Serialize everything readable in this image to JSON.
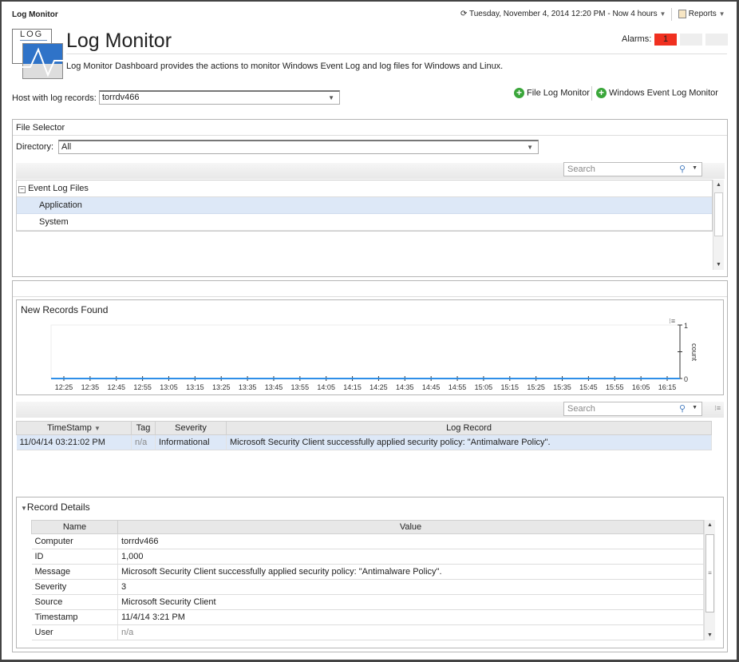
{
  "header": {
    "title": "Log Monitor",
    "time_range": "Tuesday, November 4, 2014 12:20 PM - Now 4 hours",
    "reports": "Reports"
  },
  "page": {
    "title": "Log Monitor",
    "description": "Log Monitor Dashboard provides the actions to monitor Windows Event Log and log files for Windows and Linux.",
    "logo_text": "LOG",
    "alarms_label": "Alarms:",
    "alarms_count": "1",
    "alarm_color": "#f03020"
  },
  "host": {
    "label": "Host with log records:",
    "value": "torrdv466"
  },
  "actions": {
    "file_log_monitor": "File Log Monitor",
    "windows_event_log_monitor": "Windows Event Log Monitor"
  },
  "file_selector": {
    "title": "File Selector",
    "directory_label": "Directory:",
    "directory_value": "All",
    "search_placeholder": "Search",
    "tree": {
      "root": "Event Log Files",
      "items": [
        "Application",
        "System"
      ]
    }
  },
  "chart_data": {
    "type": "line",
    "title": "New Records Found",
    "ylabel": "count",
    "ylim": [
      0,
      1
    ],
    "yticks": [
      "0",
      "1"
    ],
    "categories": [
      "12:25",
      "12:35",
      "12:45",
      "12:55",
      "13:05",
      "13:15",
      "13:25",
      "13:35",
      "13:45",
      "13:55",
      "14:05",
      "14:15",
      "14:25",
      "14:35",
      "14:45",
      "14:55",
      "15:05",
      "15:15",
      "15:25",
      "15:35",
      "15:45",
      "15:55",
      "16:05",
      "16:15"
    ],
    "values": [
      0,
      0,
      0,
      0,
      0,
      0,
      0,
      0,
      0,
      0,
      0,
      0,
      0,
      0,
      0,
      0,
      0,
      0,
      0,
      0,
      0,
      0,
      0,
      0
    ],
    "color": "#2f8fe8",
    "grid": false
  },
  "records": {
    "search_placeholder": "Search",
    "columns": [
      "TimeStamp",
      "Tag",
      "Severity",
      "Log Record"
    ],
    "rows": [
      {
        "timestamp": "11/04/14 03:21:02 PM",
        "tag": "n/a",
        "severity": "Informational",
        "record": "Microsoft Security Client successfully applied security policy: \"Antimalware Policy\"."
      }
    ]
  },
  "details": {
    "title": "Record Details",
    "columns": [
      "Name",
      "Value"
    ],
    "rows": [
      {
        "name": "Computer",
        "value": "torrdv466"
      },
      {
        "name": "ID",
        "value": "1,000"
      },
      {
        "name": "Message",
        "value": "Microsoft Security Client successfully applied security policy: \"Antimalware Policy\"."
      },
      {
        "name": "Severity",
        "value": "3"
      },
      {
        "name": "Source",
        "value": "Microsoft Security Client"
      },
      {
        "name": "Timestamp",
        "value": "11/4/14 3:21 PM"
      },
      {
        "name": "User",
        "value": "n/a"
      }
    ]
  }
}
